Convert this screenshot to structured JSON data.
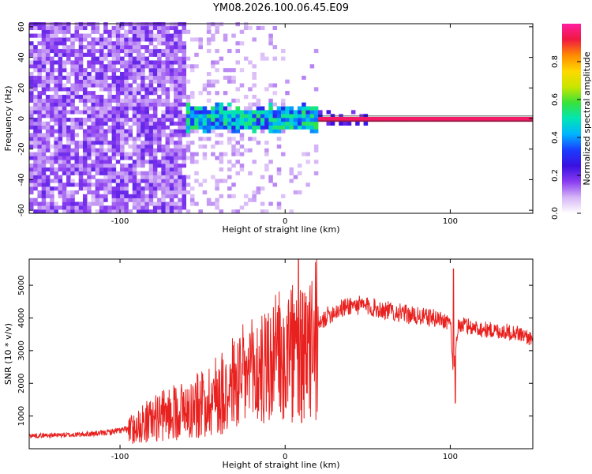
{
  "page_title": "YM08.2026.100.06.45.E09",
  "colors": {
    "trace": "#e8211f",
    "colormap": [
      "#ffffff",
      "#d6b6f6",
      "#8a3cf0",
      "#3a10e0",
      "#1a3cff",
      "#00b4ff",
      "#00e6b4",
      "#39e23a",
      "#c8e600",
      "#ffd800",
      "#ff8a00",
      "#f01840",
      "#ff1ea0"
    ]
  },
  "chart_data": [
    {
      "type": "heatmap",
      "title": "YM08.2026.100.06.45.E09",
      "xlabel": "Height of straight line (km)",
      "ylabel": "Frequency (Hz)",
      "xlim": [
        -155,
        150
      ],
      "ylim": [
        -62,
        62
      ],
      "xticks": [
        -100,
        0,
        100
      ],
      "xtick_labels": [
        "-100",
        "0",
        "100"
      ],
      "yticks": [
        -60,
        -40,
        -20,
        0,
        20,
        40,
        60
      ],
      "ytick_labels": [
        "-60",
        "-40",
        "-20",
        "0",
        "20",
        "40",
        "60"
      ],
      "colorbar": {
        "label": "Normalized spectral amplitude",
        "range": [
          0,
          1
        ],
        "ticks": [
          0.0,
          0.2,
          0.4,
          0.6,
          0.8
        ],
        "tick_labels": [
          "0.0",
          "0.2",
          "0.4",
          "0.6",
          "0.8"
        ]
      },
      "features": {
        "noise_region_x": [
          -155,
          -62
        ],
        "noise_amplitude": 0.2,
        "signal_band_hz": [
          -6,
          6
        ],
        "signal_band_x": [
          -62,
          20
        ],
        "signal_band_amplitude": 0.5,
        "tone_frequency_hz": 0,
        "tone_x": [
          20,
          150
        ],
        "tone_amplitude": 0.95
      }
    },
    {
      "type": "line",
      "xlabel": "Height of straight line (km)",
      "ylabel": "SNR (10 * v/v)",
      "xlim": [
        -155,
        150
      ],
      "ylim": [
        0,
        5800
      ],
      "xticks": [
        -100,
        0,
        100
      ],
      "xtick_labels": [
        "-100",
        "0",
        "100"
      ],
      "yticks": [
        1000,
        2000,
        3000,
        4000,
        5000
      ],
      "ytick_labels": [
        "1000",
        "2000",
        "3000",
        "4000",
        "5000"
      ],
      "x": [
        -155,
        -130,
        -110,
        -95,
        -85,
        -75,
        -65,
        -55,
        -45,
        -35,
        -25,
        -15,
        -5,
        0,
        5,
        10,
        15,
        20,
        25,
        30,
        35,
        40,
        50,
        60,
        70,
        80,
        90,
        100,
        102,
        105,
        110,
        120,
        130,
        140,
        150
      ],
      "y": [
        400,
        420,
        480,
        600,
        900,
        1100,
        1300,
        1400,
        1700,
        2100,
        2400,
        2600,
        3000,
        3100,
        3200,
        3050,
        3300,
        3700,
        4050,
        4200,
        4300,
        4400,
        4350,
        4250,
        4150,
        4050,
        4000,
        3900,
        2300,
        3800,
        3750,
        3650,
        3600,
        3550,
        3350
      ],
      "spikes": [
        {
          "x": 8,
          "y": 5800
        },
        {
          "x": 10,
          "y": 800
        },
        {
          "x": 102,
          "y": 5500
        },
        {
          "x": 103,
          "y": 1400
        }
      ]
    }
  ]
}
